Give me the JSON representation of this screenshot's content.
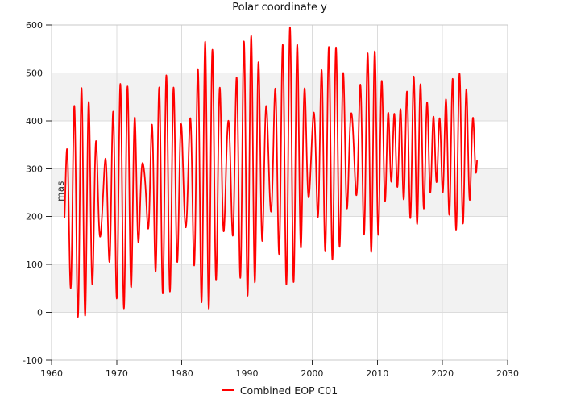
{
  "chart_data": {
    "type": "line",
    "title": "Polar coordinate y",
    "xlabel": "",
    "ylabel": "mas",
    "legend_entries": [
      "Combined EOP C01"
    ],
    "legend_position": "bottom-center",
    "grid": true,
    "alternating_horizontal_bands": true,
    "x_range": [
      1960,
      2030
    ],
    "y_range": [
      -100,
      600
    ],
    "x_ticks": [
      1960,
      1970,
      1980,
      1990,
      2000,
      2010,
      2020,
      2030
    ],
    "y_ticks": [
      600,
      500,
      400,
      300,
      200,
      100,
      0,
      -100
    ],
    "series": [
      {
        "name": "Combined EOP C01",
        "color": "#ff0000",
        "line_width": 1.8,
        "t_start": 1962.0,
        "t_end": 2025.3,
        "sample_step_years": 0.027778,
        "model": {
          "description": "y = mean(t) + A_annual(t)*cos(2pi*(t-ref)/P_annual) + A_chandler(t)*cos(2pi*(t-ref)/P_chandler); beat envelope ~6.4 yr, peaks ~595 mas near 1996.6, minima ~-25 mas near 1964-65, damped oscillation 2012-2021",
          "reference_year": 1964.6,
          "annual_period_years": 1.0,
          "chandler_period_years": 1.185,
          "mean_mas": [
            [
              1962,
              218
            ],
            [
              1966,
              230
            ],
            [
              1970,
              242
            ],
            [
              1975,
              258
            ],
            [
              1980,
              272
            ],
            [
              1985,
              290
            ],
            [
              1990,
              307
            ],
            [
              1995,
              320
            ],
            [
              2000,
              330
            ],
            [
              2005,
              336
            ],
            [
              2010,
              340
            ],
            [
              2015,
              338
            ],
            [
              2020,
              336
            ],
            [
              2025.5,
              336
            ]
          ],
          "annual_amplitude_mas": [
            [
              1962,
              88
            ],
            [
              2010,
              88
            ],
            [
              2013,
              103
            ],
            [
              2025.5,
              103
            ]
          ],
          "chandler_amplitude_mas": [
            [
              1962,
              150
            ],
            [
              1964.6,
              155
            ],
            [
              1967.8,
              155
            ],
            [
              1971,
              150
            ],
            [
              1974.2,
              140
            ],
            [
              1977.4,
              140
            ],
            [
              1980.6,
              185
            ],
            [
              1983.8,
              195
            ],
            [
              1987,
              190
            ],
            [
              1990.2,
              185
            ],
            [
              1993.4,
              190
            ],
            [
              1996.6,
              185
            ],
            [
              1999.8,
              165
            ],
            [
              2003,
              135
            ],
            [
              2006.2,
              165
            ],
            [
              2009.4,
              125
            ],
            [
              2012.6,
              25
            ],
            [
              2015.8,
              55
            ],
            [
              2018,
              30
            ],
            [
              2022.2,
              62
            ],
            [
              2025.5,
              65
            ]
          ]
        }
      }
    ]
  },
  "style": {
    "line_color": "#ff0000",
    "band_color": "#f2f2f2",
    "grid_color": "#dcdcdc",
    "spine_color": "#c9c9c9",
    "tick_color": "#2b2b2b",
    "text_color": "#1a1a1a",
    "background": "#ffffff"
  }
}
